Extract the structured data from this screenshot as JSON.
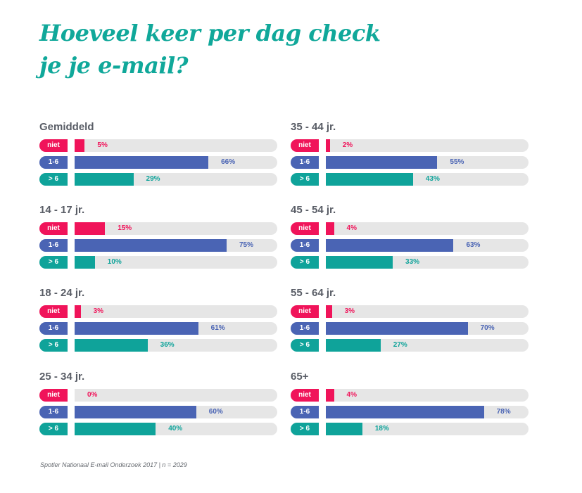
{
  "title": "Hoeveel keer per dag check je je e-mail?",
  "source": "Spotler Nationaal E-mail Onderzoek 2017 | n = 2029",
  "colors": {
    "niet": "#f0145a",
    "1-6": "#4a64b4",
    "> 6": "#0fa39a",
    "track": "#e6e6e6",
    "title": "#10a89a"
  },
  "chart_data": {
    "type": "bar",
    "orientation": "horizontal",
    "unit": "%",
    "categories": [
      "niet",
      "1-6",
      "> 6"
    ],
    "xlim": [
      0,
      100
    ],
    "groups": [
      {
        "label": "Gemiddeld",
        "values": [
          5,
          66,
          29
        ]
      },
      {
        "label": "14 - 17 jr.",
        "values": [
          15,
          75,
          10
        ]
      },
      {
        "label": "18 - 24 jr.",
        "values": [
          3,
          61,
          36
        ]
      },
      {
        "label": "25 - 34 jr.",
        "values": [
          0,
          60,
          40
        ]
      },
      {
        "label": "35 - 44 jr.",
        "values": [
          2,
          55,
          43
        ]
      },
      {
        "label": "45 - 54 jr.",
        "values": [
          4,
          63,
          33
        ]
      },
      {
        "label": "55 - 64 jr.",
        "values": [
          3,
          70,
          27
        ]
      },
      {
        "label": "65+",
        "values": [
          4,
          78,
          18
        ]
      }
    ]
  }
}
